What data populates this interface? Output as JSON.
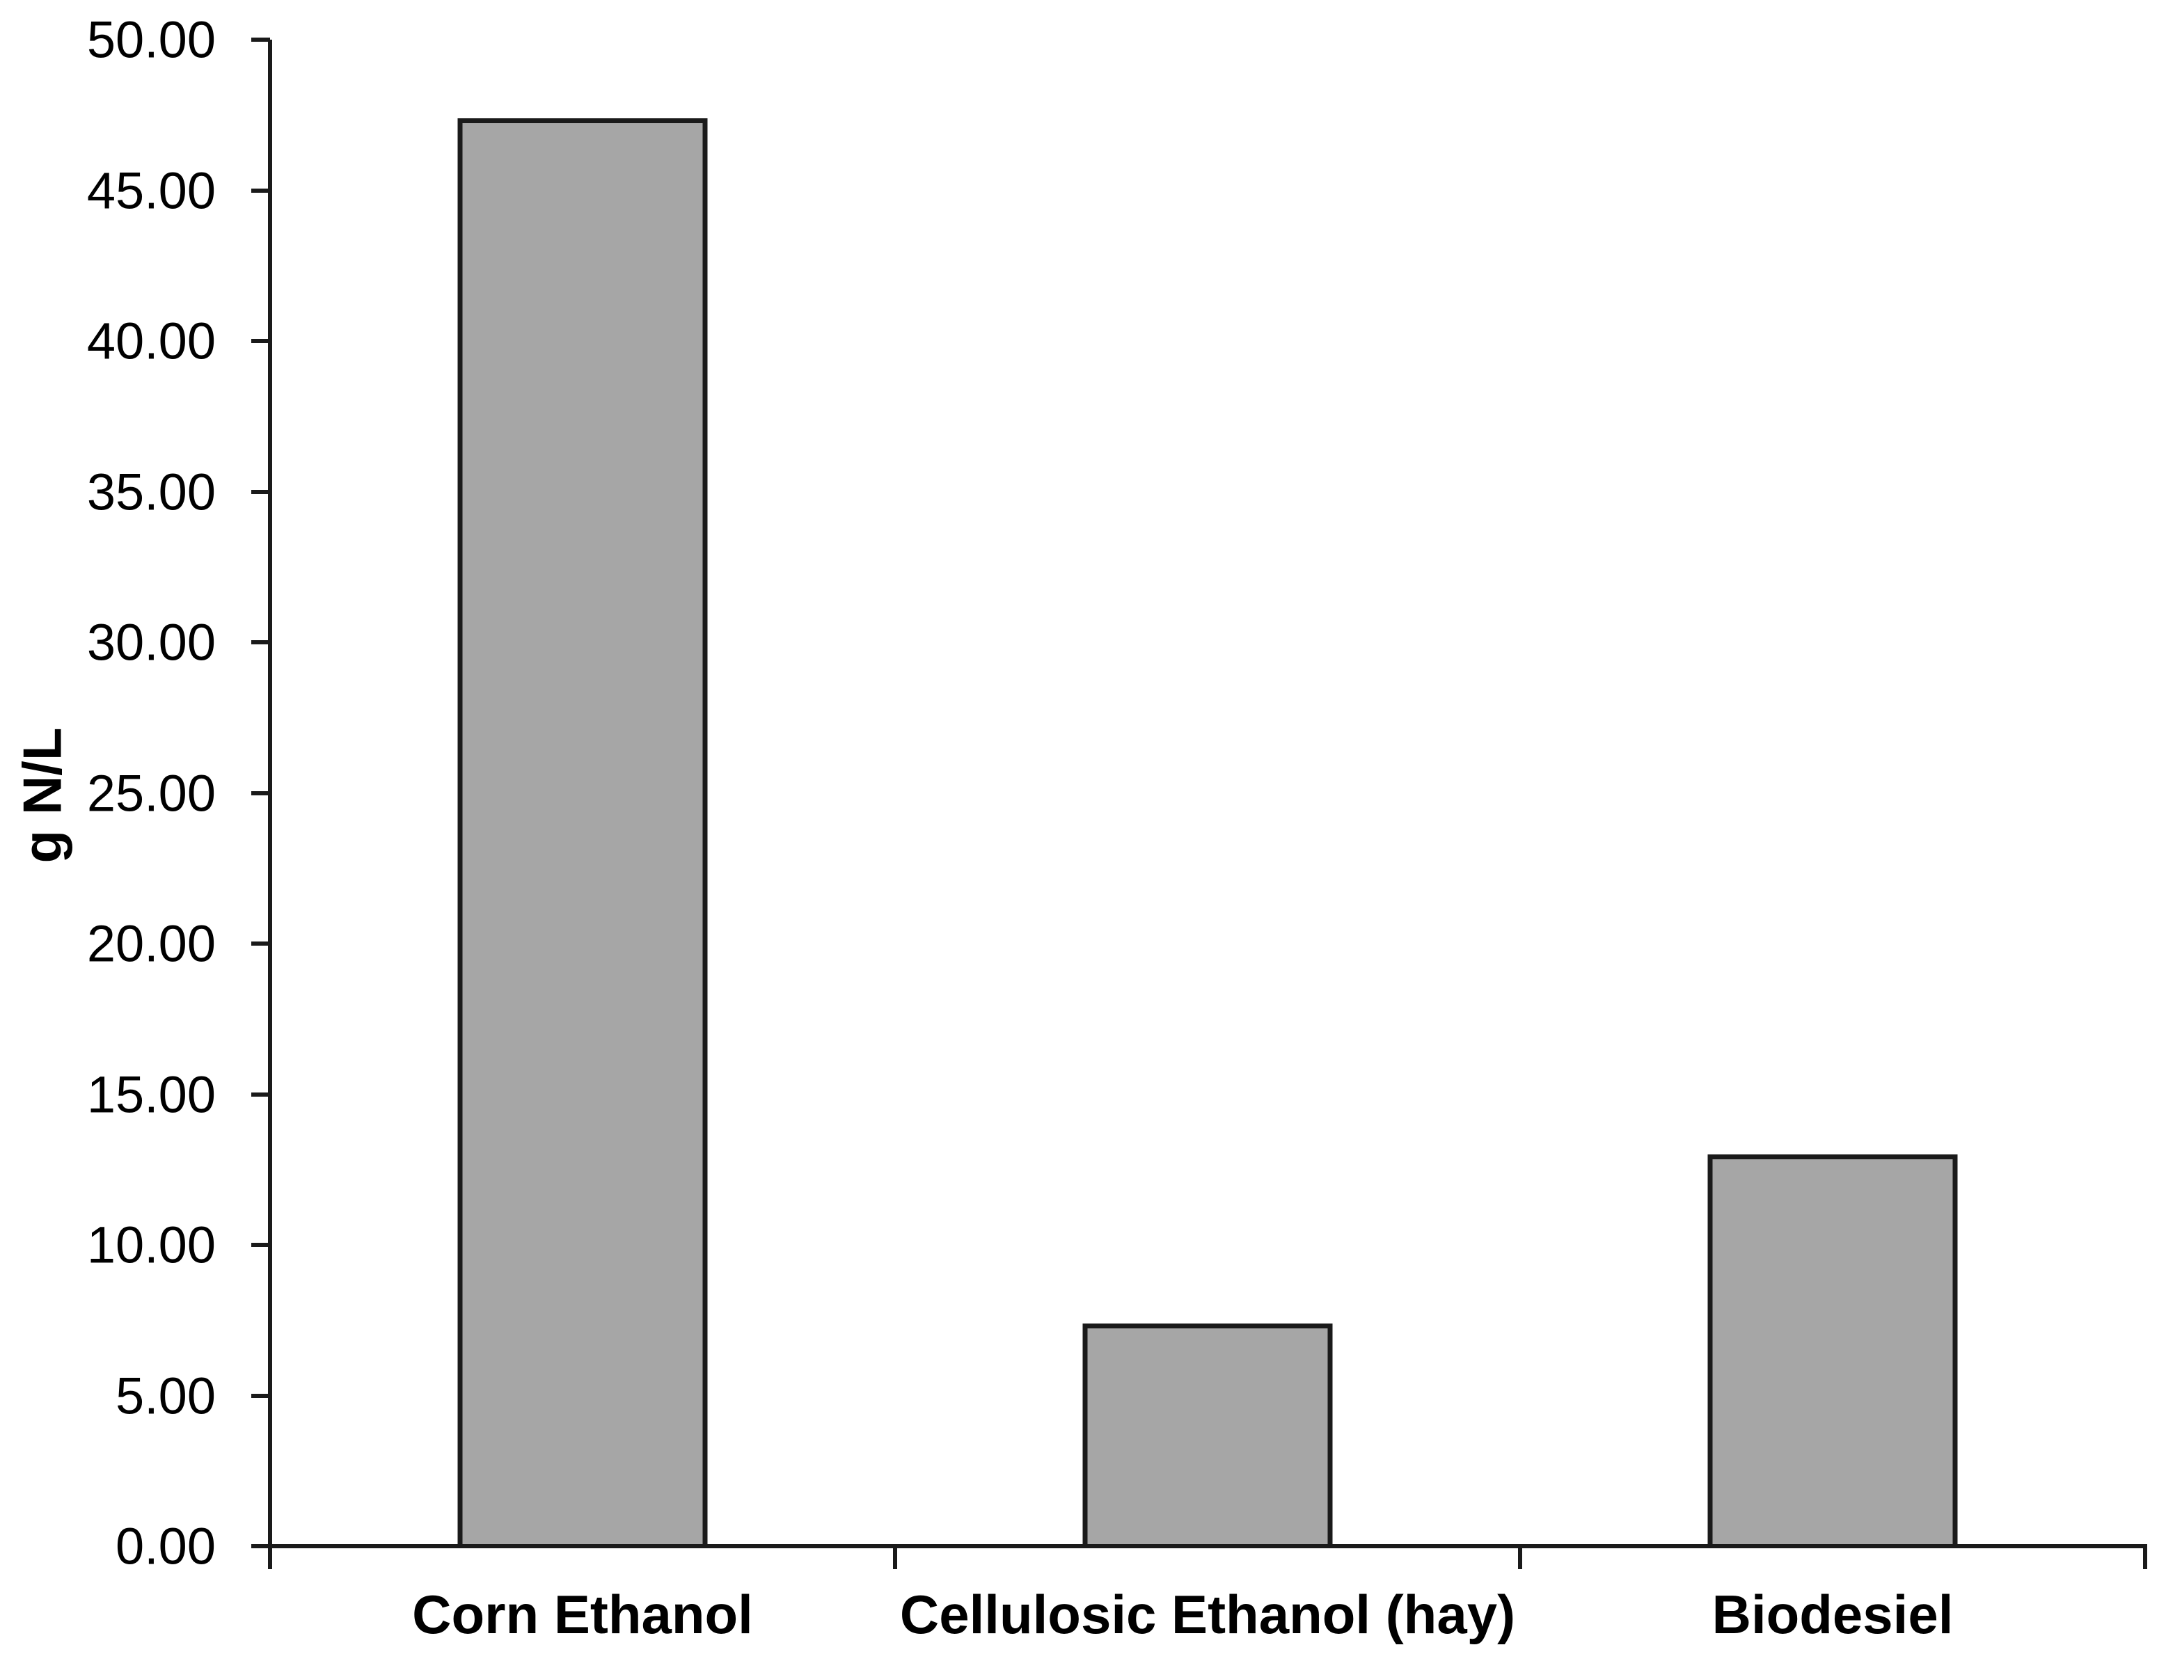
{
  "chart_data": {
    "type": "bar",
    "title": "",
    "xlabel": "",
    "ylabel": "g N/L",
    "categories": [
      "Corn Ethanol",
      "Cellulosic Ethanol (hay)",
      "Biodesiel"
    ],
    "values": [
      47.4,
      7.4,
      13.0
    ],
    "ylim": [
      0,
      50
    ],
    "ytick_step": 5,
    "ytick_labels": [
      "0.00",
      "5.00",
      "10.00",
      "15.00",
      "20.00",
      "25.00",
      "30.00",
      "35.00",
      "40.00",
      "45.00",
      "50.00"
    ],
    "grid": false,
    "legend_shown": false,
    "colors": {
      "background": "#ffffff",
      "bar_fill": "#a6a6a6",
      "bar_border": "#1a1a1a",
      "axis": "#1a1a1a",
      "text": "#000000"
    }
  }
}
